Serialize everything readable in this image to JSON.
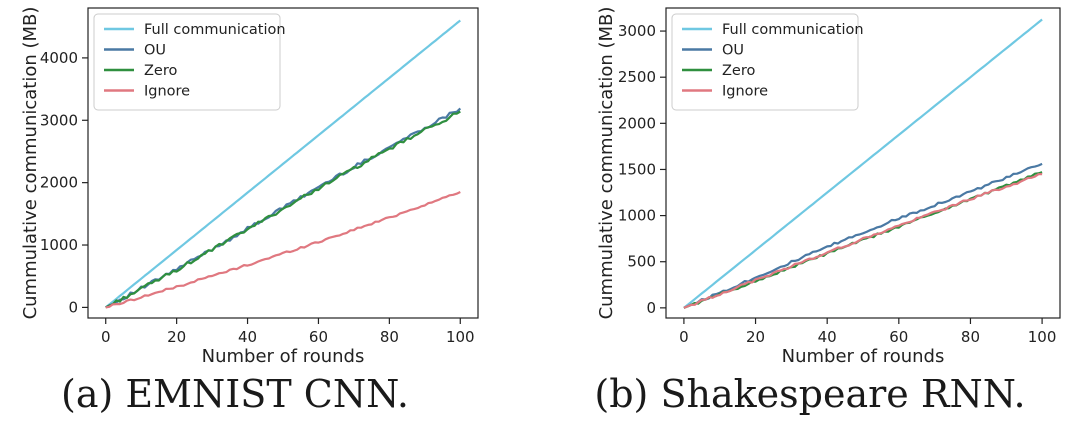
{
  "colors": {
    "full_communication": "#6fc8e2",
    "ou": "#4a79a4",
    "zero": "#2f8f3f",
    "ignore": "#e07880",
    "axis": "#222222"
  },
  "chart_data": [
    {
      "type": "line",
      "caption": "(a) EMNIST CNN.",
      "xlabel": "Number of rounds",
      "ylabel": "Cummulative communication (MB)",
      "xlim": [
        -5,
        105
      ],
      "ylim": [
        -170,
        4800
      ],
      "xticks": [
        0,
        20,
        40,
        60,
        80,
        100
      ],
      "yticks": [
        0,
        1000,
        2000,
        3000,
        4000
      ],
      "legend_position": "top-left",
      "x": [
        0,
        20,
        40,
        60,
        80,
        100
      ],
      "series": [
        {
          "name": "Full communication",
          "color_key": "full_communication",
          "values": [
            0,
            920,
            1840,
            2760,
            3680,
            4600
          ]
        },
        {
          "name": "OU",
          "color_key": "ou",
          "values": [
            0,
            610,
            1260,
            1930,
            2570,
            3190
          ]
        },
        {
          "name": "Zero",
          "color_key": "zero",
          "values": [
            0,
            600,
            1250,
            1910,
            2540,
            3140
          ]
        },
        {
          "name": "Ignore",
          "color_key": "ignore",
          "values": [
            0,
            330,
            680,
            1050,
            1440,
            1850
          ]
        }
      ]
    },
    {
      "type": "line",
      "caption": "(b) Shakespeare RNN.",
      "xlabel": "Number of rounds",
      "ylabel": "Cummulative communication (MB)",
      "xlim": [
        -5,
        105
      ],
      "ylim": [
        -110,
        3250
      ],
      "xticks": [
        0,
        20,
        40,
        60,
        80,
        100
      ],
      "yticks": [
        0,
        500,
        1000,
        1500,
        2000,
        2500,
        3000
      ],
      "legend_position": "top-left",
      "x": [
        0,
        20,
        40,
        60,
        80,
        100
      ],
      "series": [
        {
          "name": "Full communication",
          "color_key": "full_communication",
          "values": [
            0,
            625,
            1250,
            1875,
            2500,
            3125
          ]
        },
        {
          "name": "OU",
          "color_key": "ou",
          "values": [
            0,
            330,
            660,
            970,
            1260,
            1560
          ]
        },
        {
          "name": "Zero",
          "color_key": "zero",
          "values": [
            0,
            290,
            590,
            880,
            1180,
            1470
          ]
        },
        {
          "name": "Ignore",
          "color_key": "ignore",
          "values": [
            0,
            300,
            600,
            890,
            1180,
            1450
          ]
        }
      ]
    }
  ]
}
